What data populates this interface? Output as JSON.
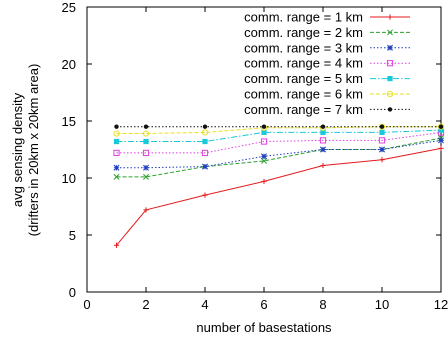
{
  "chart_data": {
    "type": "line",
    "title": "",
    "xlabel": "number of basestations",
    "ylabel": "avg sensing density",
    "ylabel2": "(drifters in 20km x 20km area)",
    "xlim": [
      0,
      12
    ],
    "ylim": [
      0,
      25
    ],
    "xticks": [
      "0",
      "2",
      "4",
      "6",
      "8",
      "10",
      "12"
    ],
    "yticks": [
      "0",
      "5",
      "10",
      "15",
      "20",
      "25"
    ],
    "x": [
      1,
      2,
      4,
      6,
      8,
      10,
      12
    ],
    "grid": false,
    "legend_position": "top-right",
    "series": [
      {
        "name": "comm. range = 1 km",
        "color": "#e41a1c",
        "marker": "plus",
        "dash": "solid",
        "values": [
          4.1,
          7.2,
          8.5,
          9.7,
          11.1,
          11.6,
          12.6
        ]
      },
      {
        "name": "comm. range = 2 km",
        "color": "#2ca02c",
        "marker": "x",
        "dash": "dashed",
        "values": [
          10.1,
          10.1,
          11.0,
          11.5,
          12.5,
          12.5,
          13.5
        ]
      },
      {
        "name": "comm. range = 3 km",
        "color": "#1f3fbf",
        "marker": "star",
        "dash": "dotted",
        "values": [
          10.9,
          10.9,
          11.0,
          11.9,
          12.5,
          12.5,
          13.3
        ]
      },
      {
        "name": "comm. range = 4 km",
        "color": "#e040e0",
        "marker": "square",
        "dash": "dotted",
        "values": [
          12.2,
          12.2,
          12.2,
          13.2,
          13.3,
          13.3,
          14.0
        ]
      },
      {
        "name": "comm. range = 5 km",
        "color": "#17c9d9",
        "marker": "filledsquare",
        "dash": "dashdot",
        "values": [
          13.2,
          13.2,
          13.2,
          14.0,
          14.0,
          14.0,
          14.2
        ]
      },
      {
        "name": "comm. range = 6 km",
        "color": "#e8e020",
        "marker": "circle",
        "dash": "dashed",
        "values": [
          13.9,
          13.9,
          14.0,
          14.4,
          14.4,
          14.5,
          14.5
        ]
      },
      {
        "name": "comm. range = 7 km",
        "color": "#111111",
        "marker": "dot",
        "dash": "dotted",
        "values": [
          14.5,
          14.5,
          14.5,
          14.5,
          14.5,
          14.5,
          14.5
        ]
      }
    ]
  }
}
